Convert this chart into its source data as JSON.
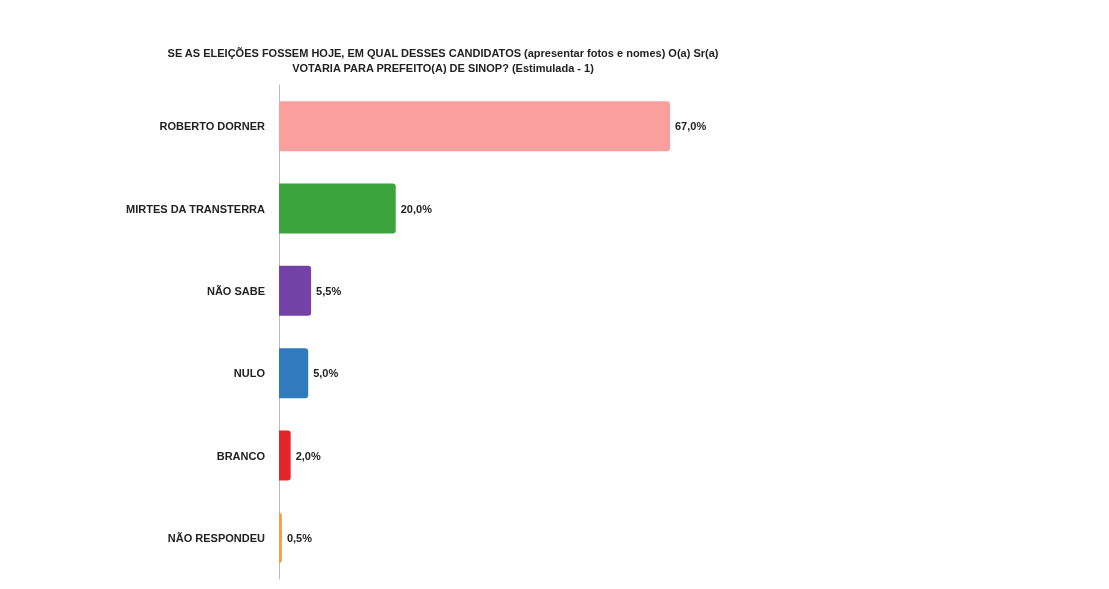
{
  "chart_data": {
    "type": "bar",
    "orientation": "horizontal",
    "title": "SE AS ELEIÇÕES FOSSEM HOJE, EM QUAL DESSES CANDIDATOS (apresentar fotos e nomes) O(a) Sr(a)\nVOTARIA PARA PREFEITO(A) DE SINOP? (Estimulada - 1)",
    "categories": [
      "ROBERTO DORNER",
      "MIRTES DA TRANSTERRA",
      "NÃO SABE",
      "NULO",
      "BRANCO",
      "NÃO RESPONDEU"
    ],
    "values": [
      67.0,
      20.0,
      5.5,
      5.0,
      2.0,
      0.5
    ],
    "value_labels": [
      "67,0%",
      "20,0%",
      "5,5%",
      "5,0%",
      "2,0%",
      "0,5%"
    ],
    "colors": [
      "#fb9e9e",
      "#3ca43c",
      "#7442a6",
      "#2f7bbd",
      "#e0262a",
      "#f0a048"
    ]
  }
}
